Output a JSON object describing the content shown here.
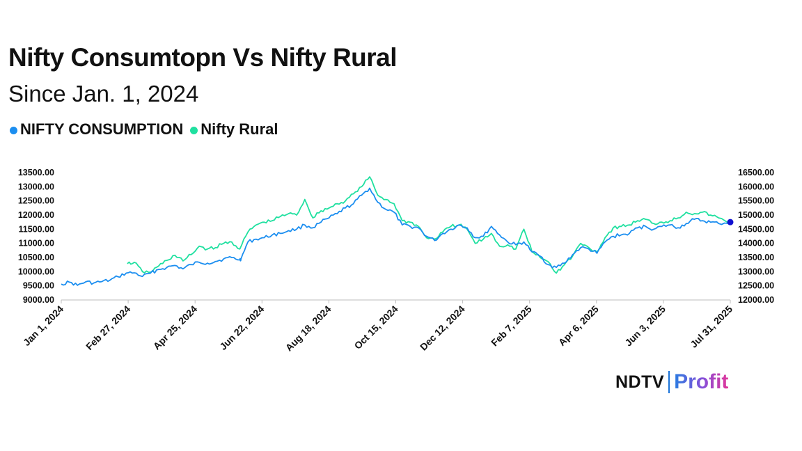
{
  "header": {
    "title": "Nifty Consumtopn Vs Nifty Rural",
    "subtitle": "Since Jan. 1, 2024"
  },
  "legend": {
    "items": [
      {
        "label": "NIFTY CONSUMPTION",
        "color": "#1b8ef0"
      },
      {
        "label": "Nifty Rural",
        "color": "#20e0a0"
      }
    ]
  },
  "logo": {
    "brand": "NDTV",
    "product": "Profit"
  },
  "chart_data": {
    "type": "line",
    "xlabel": "",
    "ylabel": "",
    "x_ticks": [
      "Jan 1, 2024",
      "Feb 27, 2024",
      "Apr 25, 2024",
      "Jun 22, 2024",
      "Aug 18, 2024",
      "Oct 15, 2024",
      "Dec 12, 2024",
      "Feb 7, 2025",
      "Apr 6, 2025",
      "Jun 3, 2025",
      "Jul 31, 2025"
    ],
    "y_left_ticks": [
      "9000.00",
      "9500.00",
      "10000.00",
      "10500.00",
      "11000.00",
      "11500.00",
      "12000.00",
      "12500.00",
      "13000.00",
      "13500.00"
    ],
    "y_right_ticks": [
      "12000.00",
      "12500.00",
      "13000.00",
      "13500.00",
      "14000.00",
      "14500.00",
      "15000.00",
      "15500.00",
      "16000.00",
      "16500.00"
    ],
    "ylim_left": [
      9000,
      13500
    ],
    "ylim_right": [
      12000,
      16500
    ],
    "x_range": [
      "2024-01-01",
      "2025-07-31"
    ],
    "series": [
      {
        "name": "NIFTY CONSUMPTION",
        "axis": "left",
        "color": "#1b8ef0",
        "points": [
          [
            "2024-01-01",
            9560
          ],
          [
            "2024-01-08",
            9630
          ],
          [
            "2024-01-15",
            9520
          ],
          [
            "2024-01-22",
            9640
          ],
          [
            "2024-01-29",
            9600
          ],
          [
            "2024-02-05",
            9650
          ],
          [
            "2024-02-12",
            9700
          ],
          [
            "2024-02-19",
            9820
          ],
          [
            "2024-02-26",
            9950
          ],
          [
            "2024-03-04",
            9960
          ],
          [
            "2024-03-11",
            9830
          ],
          [
            "2024-03-18",
            9950
          ],
          [
            "2024-03-25",
            10080
          ],
          [
            "2024-04-01",
            10150
          ],
          [
            "2024-04-08",
            10220
          ],
          [
            "2024-04-15",
            10100
          ],
          [
            "2024-04-22",
            10250
          ],
          [
            "2024-04-29",
            10330
          ],
          [
            "2024-05-06",
            10300
          ],
          [
            "2024-05-13",
            10360
          ],
          [
            "2024-05-20",
            10450
          ],
          [
            "2024-05-27",
            10500
          ],
          [
            "2024-06-03",
            10420
          ],
          [
            "2024-06-04",
            10450
          ],
          [
            "2024-06-10",
            11050
          ],
          [
            "2024-06-17",
            11150
          ],
          [
            "2024-06-24",
            11200
          ],
          [
            "2024-07-01",
            11300
          ],
          [
            "2024-07-08",
            11350
          ],
          [
            "2024-07-15",
            11450
          ],
          [
            "2024-07-22",
            11500
          ],
          [
            "2024-07-29",
            11650
          ],
          [
            "2024-08-05",
            11550
          ],
          [
            "2024-08-12",
            11750
          ],
          [
            "2024-08-19",
            11900
          ],
          [
            "2024-08-26",
            12050
          ],
          [
            "2024-09-02",
            12250
          ],
          [
            "2024-09-09",
            12400
          ],
          [
            "2024-09-16",
            12700
          ],
          [
            "2024-09-23",
            12950
          ],
          [
            "2024-09-30",
            12450
          ],
          [
            "2024-10-07",
            12200
          ],
          [
            "2024-10-14",
            12100
          ],
          [
            "2024-10-21",
            11650
          ],
          [
            "2024-10-28",
            11600
          ],
          [
            "2024-11-04",
            11550
          ],
          [
            "2024-11-11",
            11250
          ],
          [
            "2024-11-18",
            11100
          ],
          [
            "2024-11-25",
            11350
          ],
          [
            "2024-12-02",
            11500
          ],
          [
            "2024-12-09",
            11650
          ],
          [
            "2024-12-16",
            11550
          ],
          [
            "2024-12-23",
            11200
          ],
          [
            "2024-12-30",
            11250
          ],
          [
            "2025-01-06",
            11600
          ],
          [
            "2025-01-13",
            11300
          ],
          [
            "2025-01-20",
            11050
          ],
          [
            "2025-01-27",
            10950
          ],
          [
            "2025-02-03",
            11050
          ],
          [
            "2025-02-10",
            10700
          ],
          [
            "2025-02-17",
            10550
          ],
          [
            "2025-02-24",
            10250
          ],
          [
            "2025-03-03",
            10150
          ],
          [
            "2025-03-10",
            10300
          ],
          [
            "2025-03-17",
            10600
          ],
          [
            "2025-03-24",
            10850
          ],
          [
            "2025-03-31",
            10800
          ],
          [
            "2025-04-07",
            10650
          ],
          [
            "2025-04-14",
            11050
          ],
          [
            "2025-04-21",
            11250
          ],
          [
            "2025-04-28",
            11300
          ],
          [
            "2025-05-05",
            11350
          ],
          [
            "2025-05-12",
            11550
          ],
          [
            "2025-05-19",
            11600
          ],
          [
            "2025-05-26",
            11500
          ],
          [
            "2025-06-02",
            11600
          ],
          [
            "2025-06-09",
            11650
          ],
          [
            "2025-06-16",
            11550
          ],
          [
            "2025-06-23",
            11700
          ],
          [
            "2025-06-30",
            11850
          ],
          [
            "2025-07-07",
            11800
          ],
          [
            "2025-07-14",
            11750
          ],
          [
            "2025-07-21",
            11700
          ],
          [
            "2025-07-31",
            11750
          ]
        ]
      },
      {
        "name": "Nifty Rural",
        "axis": "right",
        "color": "#20e0a0",
        "points": [
          [
            "2024-02-27",
            13280
          ],
          [
            "2024-03-04",
            13330
          ],
          [
            "2024-03-11",
            13000
          ],
          [
            "2024-03-18",
            12980
          ],
          [
            "2024-03-25",
            13200
          ],
          [
            "2024-04-01",
            13400
          ],
          [
            "2024-04-08",
            13580
          ],
          [
            "2024-04-15",
            13380
          ],
          [
            "2024-04-22",
            13600
          ],
          [
            "2024-04-29",
            13900
          ],
          [
            "2024-05-06",
            13800
          ],
          [
            "2024-05-13",
            13850
          ],
          [
            "2024-05-20",
            14000
          ],
          [
            "2024-05-27",
            14050
          ],
          [
            "2024-06-03",
            13800
          ],
          [
            "2024-06-10",
            14400
          ],
          [
            "2024-06-17",
            14650
          ],
          [
            "2024-06-24",
            14750
          ],
          [
            "2024-07-01",
            14800
          ],
          [
            "2024-07-08",
            14950
          ],
          [
            "2024-07-15",
            15050
          ],
          [
            "2024-07-22",
            15000
          ],
          [
            "2024-07-29",
            15550
          ],
          [
            "2024-08-05",
            14900
          ],
          [
            "2024-08-12",
            15150
          ],
          [
            "2024-08-19",
            15250
          ],
          [
            "2024-08-26",
            15400
          ],
          [
            "2024-09-02",
            15500
          ],
          [
            "2024-09-09",
            15750
          ],
          [
            "2024-09-16",
            16000
          ],
          [
            "2024-09-23",
            16350
          ],
          [
            "2024-09-30",
            15700
          ],
          [
            "2024-10-07",
            15550
          ],
          [
            "2024-10-14",
            15400
          ],
          [
            "2024-10-21",
            14800
          ],
          [
            "2024-10-28",
            14750
          ],
          [
            "2024-11-04",
            14600
          ],
          [
            "2024-11-11",
            14200
          ],
          [
            "2024-11-18",
            14150
          ],
          [
            "2024-11-25",
            14400
          ],
          [
            "2024-12-02",
            14600
          ],
          [
            "2024-12-09",
            14650
          ],
          [
            "2024-12-16",
            14500
          ],
          [
            "2024-12-23",
            14000
          ],
          [
            "2024-12-30",
            14150
          ],
          [
            "2025-01-06",
            14350
          ],
          [
            "2025-01-13",
            13900
          ],
          [
            "2025-01-20",
            13950
          ],
          [
            "2025-01-27",
            13800
          ],
          [
            "2025-02-03",
            14500
          ],
          [
            "2025-02-10",
            13700
          ],
          [
            "2025-02-17",
            13500
          ],
          [
            "2025-02-24",
            13350
          ],
          [
            "2025-03-03",
            12950
          ],
          [
            "2025-03-10",
            13250
          ],
          [
            "2025-03-17",
            13550
          ],
          [
            "2025-03-24",
            14000
          ],
          [
            "2025-03-31",
            13850
          ],
          [
            "2025-04-07",
            13700
          ],
          [
            "2025-04-14",
            14200
          ],
          [
            "2025-04-21",
            14550
          ],
          [
            "2025-04-28",
            14600
          ],
          [
            "2025-05-05",
            14650
          ],
          [
            "2025-05-12",
            14800
          ],
          [
            "2025-05-19",
            14850
          ],
          [
            "2025-05-26",
            14700
          ],
          [
            "2025-06-02",
            14750
          ],
          [
            "2025-06-09",
            14800
          ],
          [
            "2025-06-16",
            14900
          ],
          [
            "2025-06-23",
            15100
          ],
          [
            "2025-06-30",
            15050
          ],
          [
            "2025-07-07",
            15100
          ],
          [
            "2025-07-14",
            15000
          ],
          [
            "2025-07-21",
            14900
          ],
          [
            "2025-07-31",
            14700
          ]
        ]
      }
    ],
    "end_marker": {
      "series": "NIFTY CONSUMPTION",
      "date": "2025-07-31",
      "value": 11750,
      "color": "#1010d0"
    }
  }
}
